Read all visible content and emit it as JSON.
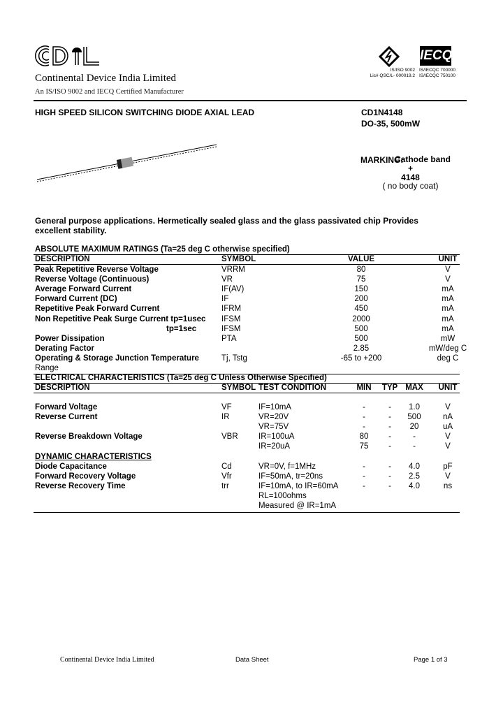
{
  "header": {
    "logo_text": "CDIL",
    "company": "Continental Device India Limited",
    "tagline": "An IS/ISO 9002 and IECQ Certified Manufacturer",
    "cert_left": [
      "IS/ISO 9002",
      "Lic# QSC/L- 000019.2"
    ],
    "cert_right_logo": "IECQ",
    "cert_right": [
      "IS/IECQC 700000",
      "IS/IECQC 750100"
    ]
  },
  "product": {
    "title": "HIGH SPEED SILICON SWITCHING DIODE AXIAL LEAD",
    "part": "CD1N4148",
    "package": "DO-35,  500mW",
    "marking_label": "MARKING:",
    "marking_lines": [
      "Cathode band",
      "+",
      "4148",
      "( no body  coat)"
    ],
    "description": "General purpose applications. Hermetically sealed glass and the glass passivated chip Provides",
    "description2": "excellent stability."
  },
  "abs_max": {
    "title": "ABSOLUTE MAXIMUM RATINGS (Ta=25 deg C otherwise specified)",
    "headers": [
      "DESCRIPTION",
      "SYMBOL",
      "VALUE",
      "UNIT"
    ],
    "rows": [
      [
        "Peak Repetitive Reverse Voltage",
        "VRRM",
        "80",
        "V"
      ],
      [
        "Reverse Voltage (Continuous)",
        "VR",
        "75",
        "V"
      ],
      [
        "Average Forward Current",
        "IF(AV)",
        "150",
        "mA"
      ],
      [
        "Forward Current (DC)",
        "IF",
        "200",
        "mA"
      ],
      [
        "Repetitive Peak Forward Current",
        "IFRM",
        "450",
        "mA"
      ],
      [
        "Non Repetitive Peak Surge Current   tp=1usec",
        "IFSM",
        "2000",
        "mA"
      ],
      [
        "tp=1sec",
        "IFSM",
        "500",
        "mA"
      ],
      [
        "Power Dissipation",
        "PTA",
        "500",
        "mW"
      ],
      [
        "Derating Factor",
        "",
        "2.85",
        "mW/deg C"
      ],
      [
        "Operating & Storage Junction Temperature",
        "Tj, Tstg",
        "-65 to +200",
        "deg C"
      ],
      [
        "Range",
        "",
        "",
        ""
      ]
    ]
  },
  "electrical": {
    "title": "ELECTRICAL CHARACTERISTICS (Ta=25 deg C Unless Otherwise Specified)",
    "headers": [
      "DESCRIPTION",
      "SYMBOL",
      "TEST CONDITION",
      "MIN",
      "TYP",
      "MAX",
      "UNIT"
    ],
    "rows": [
      [
        "Forward Voltage",
        "VF",
        "IF=10mA",
        "-",
        "-",
        "1.0",
        "V"
      ],
      [
        "Reverse Current",
        "IR",
        "VR=20V",
        "-",
        "-",
        "500",
        "nA"
      ],
      [
        "",
        "",
        "VR=75V",
        "-",
        "-",
        "20",
        "uA"
      ],
      [
        "Reverse Breakdown Voltage",
        "VBR",
        "IR=100uA",
        "80",
        "-",
        "-",
        "V"
      ],
      [
        "",
        "",
        "IR=20uA",
        "75",
        "-",
        "-",
        "V"
      ],
      [
        "DYNAMIC CHARACTERISTICS",
        "",
        "",
        "",
        "",
        "",
        ""
      ],
      [
        "Diode Capacitance",
        "Cd",
        "VR=0V, f=1MHz",
        "-",
        "-",
        "4.0",
        "pF"
      ],
      [
        "Forward Recovery Voltage",
        "Vfr",
        "IF=50mA, tr=20ns",
        "-",
        "-",
        "2.5",
        "V"
      ],
      [
        "Reverse Recovery Time",
        "trr",
        "IF=10mA, to IR=60mA",
        "-",
        "-",
        "4.0",
        "ns"
      ],
      [
        "",
        "",
        "RL=100ohms",
        "",
        "",
        "",
        ""
      ],
      [
        "",
        "",
        "Measured @ IR=1mA",
        "",
        "",
        "",
        ""
      ]
    ]
  },
  "footer": {
    "company": "Continental Device India Limited",
    "doc_type": "Data Sheet",
    "page": "Page 1 of 3"
  }
}
